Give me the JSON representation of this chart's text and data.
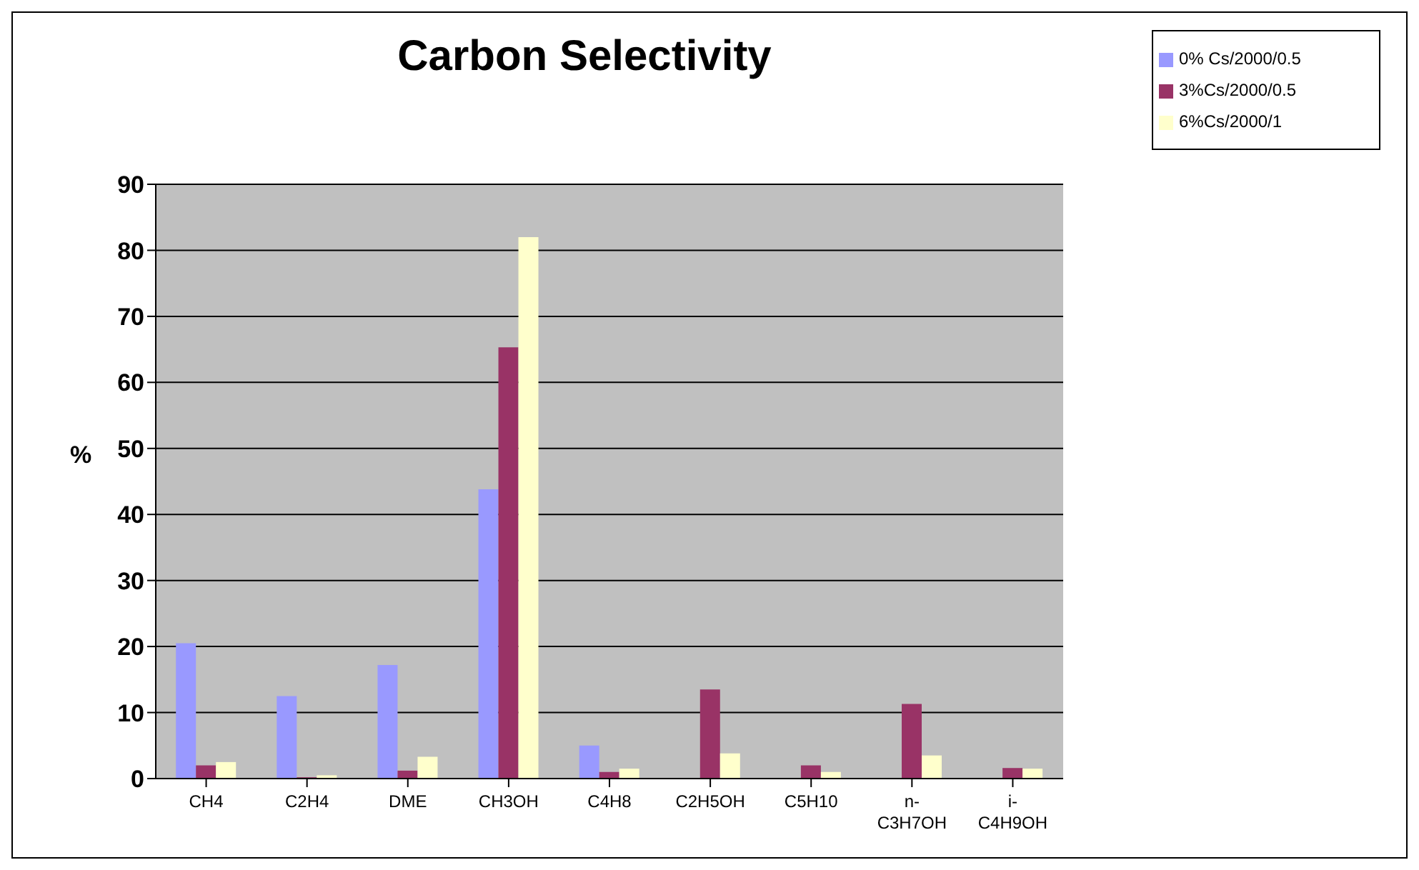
{
  "chart_data": {
    "type": "bar",
    "title": "Carbon Selectivity",
    "ylabel": "%",
    "categories": [
      "CH4",
      "C2H4",
      "DME",
      "CH3OH",
      "C4H8",
      "C2H5OH",
      "C5H10",
      "n-C3H7OH",
      "i-C4H9OH"
    ],
    "series": [
      {
        "name": "0% Cs/2000/0.5",
        "color": "#9999ff",
        "values": [
          20.5,
          12.5,
          17.2,
          43.8,
          5,
          0,
          0,
          0,
          0
        ]
      },
      {
        "name": "3%Cs/2000/0.5",
        "color": "#993366",
        "values": [
          2,
          0.2,
          1.2,
          65.3,
          1,
          13.5,
          2,
          11.3,
          1.6
        ]
      },
      {
        "name": "6%Cs/2000/1",
        "color": "#ffffcc",
        "values": [
          2.5,
          0.5,
          3.3,
          82,
          1.5,
          3.8,
          1,
          3.5,
          1.5
        ]
      }
    ],
    "ylim": [
      0,
      90
    ],
    "yticks": [
      0,
      10,
      20,
      30,
      40,
      50,
      60,
      70,
      80,
      90
    ],
    "grid": "y",
    "legend": "top right"
  }
}
